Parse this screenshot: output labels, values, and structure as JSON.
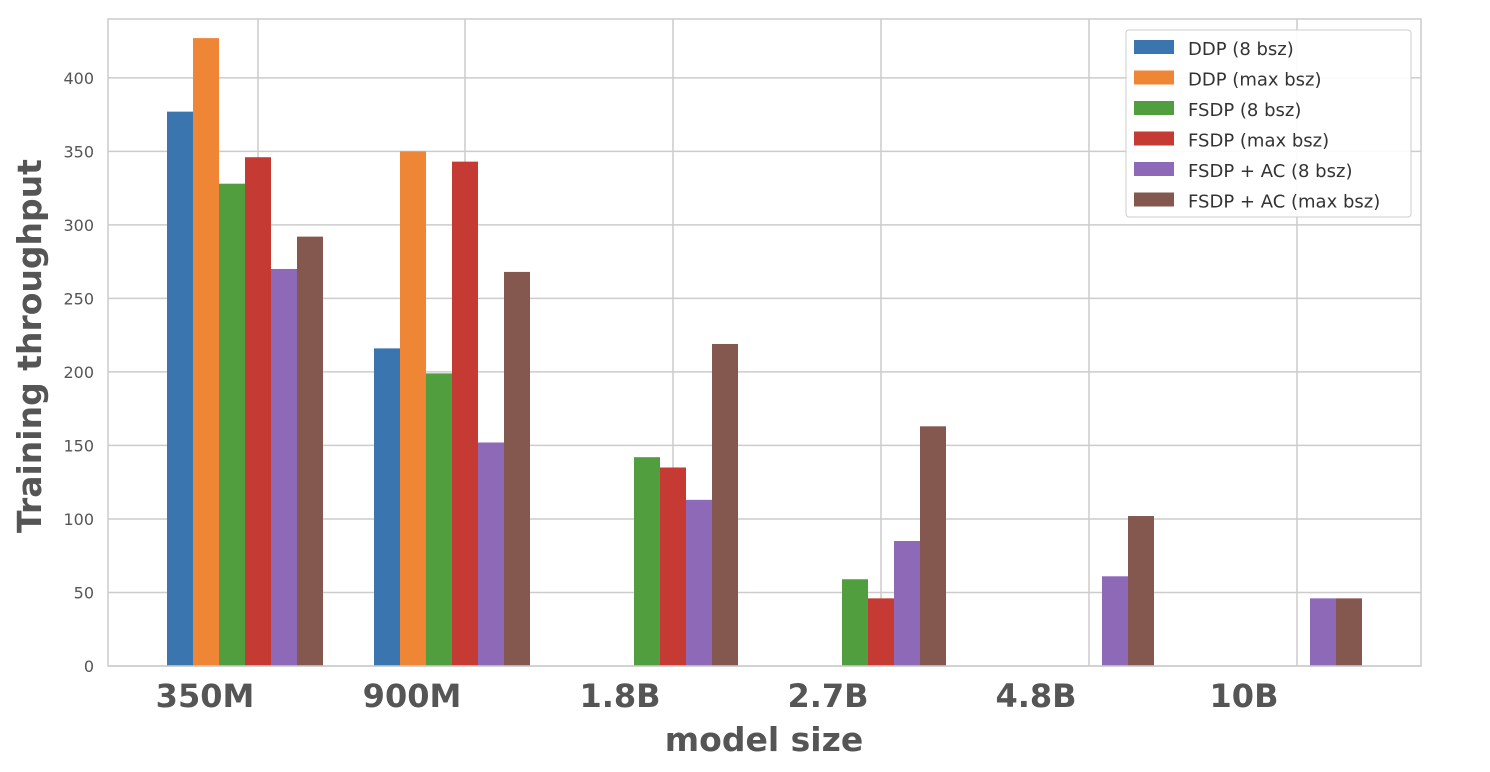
{
  "chart_data": {
    "type": "bar",
    "title": "",
    "xlabel": "model size",
    "ylabel": "Training throughput",
    "categories": [
      "350M",
      "900M",
      "1.8B",
      "2.7B",
      "4.8B",
      "10B"
    ],
    "ylim": [
      0,
      440
    ],
    "yticks": [
      0,
      50,
      100,
      150,
      200,
      250,
      300,
      350,
      400
    ],
    "grid": true,
    "legend_position": "top-right",
    "series": [
      {
        "name": "DDP (8 bsz)",
        "color": "#3b75af",
        "values": [
          377,
          216,
          0,
          0,
          0,
          0
        ]
      },
      {
        "name": "DDP (max bsz)",
        "color": "#ef8636",
        "values": [
          427,
          350,
          0,
          0,
          0,
          0
        ]
      },
      {
        "name": "FSDP (8 bsz)",
        "color": "#519e3e",
        "values": [
          328,
          199,
          142,
          59,
          0,
          0
        ]
      },
      {
        "name": "FSDP (max bsz)",
        "color": "#c53a32",
        "values": [
          346,
          343,
          135,
          46,
          0,
          0
        ]
      },
      {
        "name": "FSDP + AC (8 bsz)",
        "color": "#8d69b8",
        "values": [
          270,
          152,
          113,
          85,
          61,
          46
        ]
      },
      {
        "name": "FSDP + AC (max bsz)",
        "color": "#84584e",
        "values": [
          292,
          268,
          219,
          163,
          102,
          46
        ]
      }
    ]
  }
}
